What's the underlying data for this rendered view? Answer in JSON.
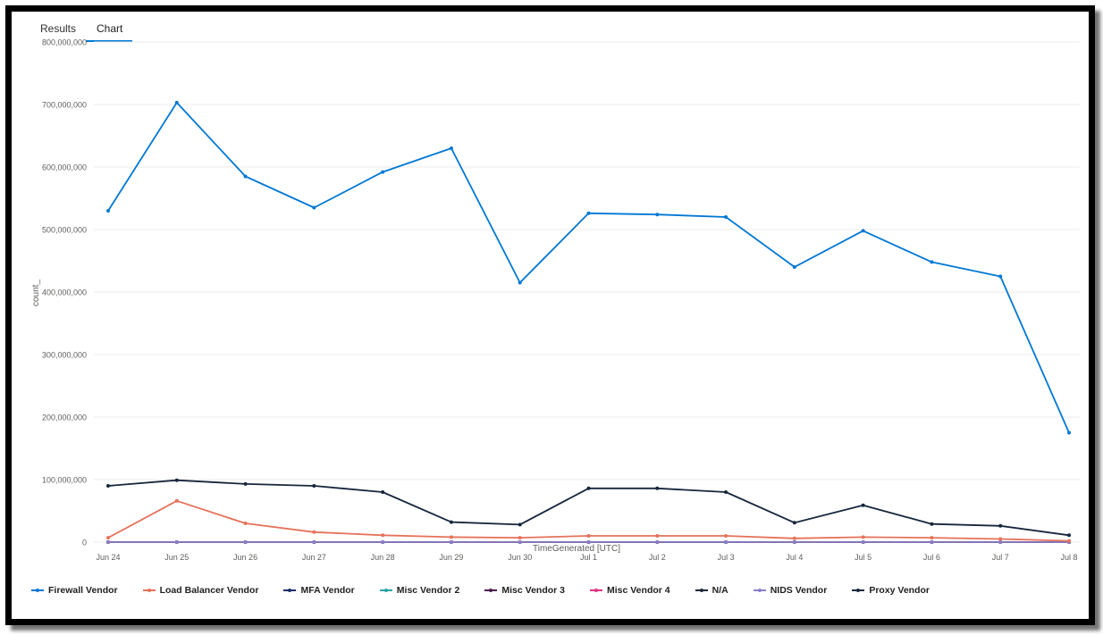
{
  "tabs": [
    {
      "label": "Results",
      "active": false
    },
    {
      "label": "Chart",
      "active": true
    }
  ],
  "chart_data": {
    "type": "line",
    "title": "",
    "xlabel": "TimeGenerated [UTC]",
    "ylabel": "count_",
    "ylim": [
      0,
      800000000
    ],
    "y_ticks": [
      0,
      100000000,
      200000000,
      300000000,
      400000000,
      500000000,
      600000000,
      700000000,
      800000000
    ],
    "y_tick_labels": [
      "0",
      "100,000,000",
      "200,000,000",
      "300,000,000",
      "400,000,000",
      "500,000,000",
      "600,000,000",
      "700,000,000",
      "800,000,000"
    ],
    "categories": [
      "Jun 24",
      "Jun 25",
      "Jun 26",
      "Jun 27",
      "Jun 28",
      "Jun 29",
      "Jun 30",
      "Jul 1",
      "Jul 2",
      "Jul 3",
      "Jul 4",
      "Jul 5",
      "Jul 6",
      "Jul 7",
      "Jul 8"
    ],
    "grid": true,
    "legend_position": "bottom",
    "series": [
      {
        "name": "Firewall Vendor",
        "color": "#0078d4",
        "values": [
          530000000,
          703000000,
          585000000,
          535000000,
          592000000,
          630000000,
          415000000,
          526000000,
          524000000,
          520000000,
          440000000,
          498000000,
          448000000,
          425000000,
          175000000
        ]
      },
      {
        "name": "Load Balancer Vendor",
        "color": "#e5725a",
        "values": [
          7000000,
          66000000,
          30000000,
          16000000,
          11000000,
          8000000,
          7000000,
          10000000,
          10000000,
          10000000,
          6000000,
          8000000,
          7000000,
          5000000,
          2000000
        ]
      },
      {
        "name": "MFA Vendor",
        "color": "#1b2f6b",
        "values": [
          0,
          0,
          0,
          0,
          0,
          0,
          0,
          0,
          0,
          0,
          0,
          0,
          0,
          0,
          0
        ]
      },
      {
        "name": "Misc Vendor 2",
        "color": "#2aa3a3",
        "values": [
          0,
          0,
          0,
          0,
          0,
          0,
          0,
          0,
          0,
          0,
          0,
          0,
          0,
          0,
          0
        ]
      },
      {
        "name": "Misc Vendor 3",
        "color": "#4a1c4f",
        "values": [
          0,
          0,
          0,
          0,
          0,
          0,
          0,
          0,
          0,
          0,
          0,
          0,
          0,
          0,
          0
        ]
      },
      {
        "name": "Misc Vendor 4",
        "color": "#e2337f",
        "values": [
          0,
          0,
          0,
          0,
          0,
          0,
          0,
          0,
          0,
          0,
          0,
          0,
          0,
          0,
          0
        ]
      },
      {
        "name": "N/A",
        "color": "#1e2a3a",
        "values": [
          0,
          0,
          0,
          0,
          0,
          0,
          0,
          0,
          0,
          0,
          0,
          0,
          0,
          0,
          0
        ]
      },
      {
        "name": "NIDS Vendor",
        "color": "#8c7fc8",
        "values": [
          0,
          0,
          0,
          0,
          0,
          0,
          0,
          0,
          0,
          0,
          0,
          0,
          0,
          0,
          0
        ]
      },
      {
        "name": "Proxy Vendor",
        "color": "#16263d",
        "values": [
          90000000,
          99000000,
          93000000,
          90000000,
          80000000,
          32000000,
          28000000,
          86000000,
          86000000,
          80000000,
          31000000,
          59000000,
          29000000,
          26000000,
          11000000
        ]
      }
    ]
  }
}
